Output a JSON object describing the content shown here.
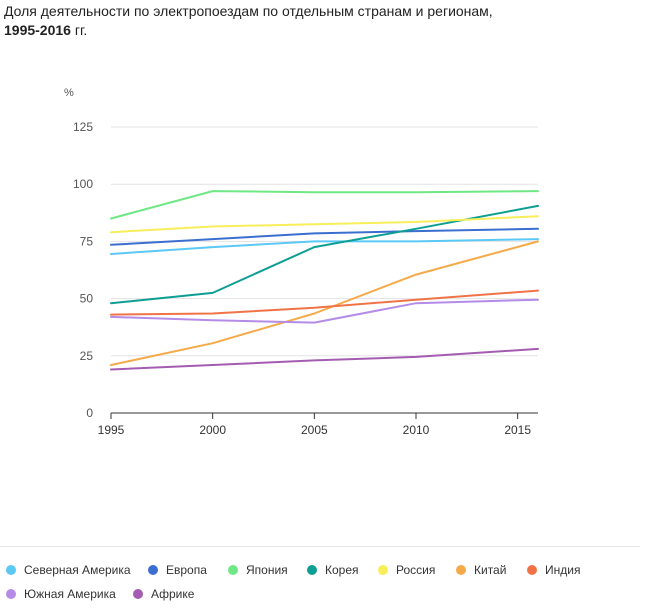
{
  "title": {
    "line1": "Доля деятельности по электропоездам по отдельным странам и регионам,",
    "line2_bold": "1995-2016",
    "line2_rest": " гг."
  },
  "chart_data": {
    "type": "line",
    "ylabel": "%",
    "ylim": [
      0,
      125
    ],
    "yticks": [
      "0",
      "25",
      "50",
      "75",
      "100",
      "125"
    ],
    "xlim": [
      1995,
      2016
    ],
    "xticks": [
      "1995",
      "2000",
      "2005",
      "2010",
      "2015"
    ],
    "x": [
      1995,
      2000,
      2005,
      2010,
      2016
    ],
    "grid": "horizontal",
    "legend_position": "bottom",
    "series": [
      {
        "name": "Северная Америка",
        "color": "#5bc8f5",
        "values": [
          69.5,
          72.5,
          75,
          75,
          76
        ]
      },
      {
        "name": "Европа",
        "color": "#3a6fd0",
        "values": [
          73.5,
          76,
          78.5,
          79.5,
          80.5
        ]
      },
      {
        "name": "Япония",
        "color": "#6ee884",
        "values": [
          85,
          97,
          96.5,
          96.5,
          97
        ]
      },
      {
        "name": "Корея",
        "color": "#0d9e93",
        "values": [
          48,
          52.5,
          72.5,
          80.5,
          90.5
        ]
      },
      {
        "name": "Россия",
        "color": "#f7ee5a",
        "values": [
          79,
          81.5,
          82.5,
          83.5,
          86
        ]
      },
      {
        "name": "Китай",
        "color": "#f5aa4a",
        "values": [
          21,
          30.5,
          43.5,
          60.5,
          75
        ]
      },
      {
        "name": "Индия",
        "color": "#f07348",
        "values": [
          43,
          43.5,
          46,
          49.5,
          53.5
        ]
      },
      {
        "name": "Южная Америка",
        "color": "#b48ce8",
        "values": [
          42,
          40.5,
          39.5,
          48,
          49.5
        ]
      },
      {
        "name": "Африке",
        "color": "#a45cb2",
        "values": [
          19,
          21,
          23,
          24.5,
          28
        ]
      }
    ]
  }
}
